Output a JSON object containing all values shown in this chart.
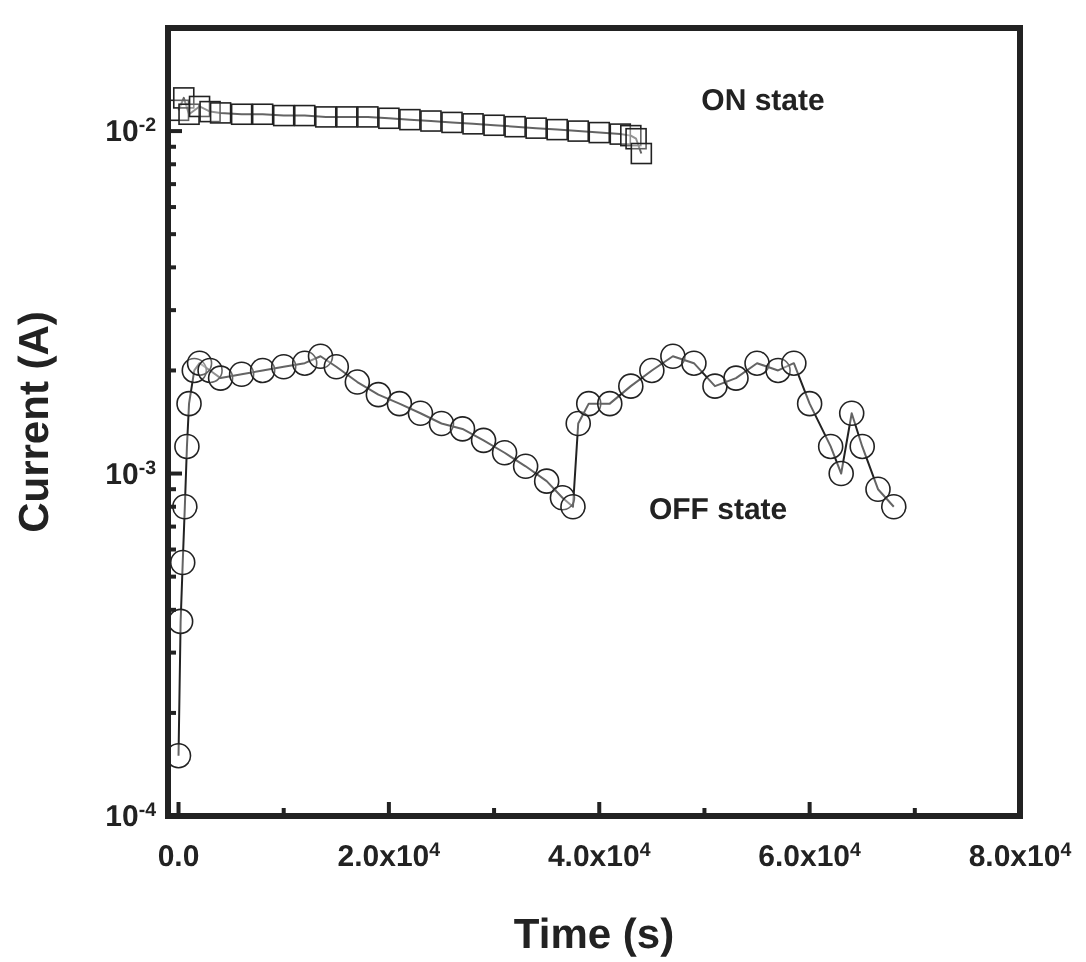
{
  "chart_data": {
    "type": "line",
    "xlabel": "Time (s)",
    "ylabel": "Current (A)",
    "log": "y",
    "grid": false,
    "xlim": [
      -1000,
      80000
    ],
    "ylim": [
      0.0001,
      0.02
    ],
    "xticks": [
      {
        "value": 0,
        "label": "0.0"
      },
      {
        "value": 10000,
        "label": null
      },
      {
        "value": 20000,
        "label": "2.0x10$^{4}$"
      },
      {
        "value": 30000,
        "label": null
      },
      {
        "value": 40000,
        "label": "4.0x10$^{4}$"
      },
      {
        "value": 50000,
        "label": null
      },
      {
        "value": 60000,
        "label": "6.0x10$^{4}$"
      },
      {
        "value": 70000,
        "label": null
      },
      {
        "value": 80000,
        "label": "8.0x10$^{4}$"
      }
    ],
    "yticks": [
      {
        "value": 0.0001,
        "label": "10$^{-4}$"
      },
      {
        "value": 0.001,
        "label": "10$^{-3}$"
      },
      {
        "value": 0.01,
        "label": "10$^{-2}$"
      }
    ],
    "series": [
      {
        "name": "ON state",
        "color": "#222222",
        "marker": "square",
        "x": [
          0,
          500,
          1000,
          2000,
          3000,
          4000,
          6000,
          8000,
          10000,
          12000,
          14000,
          16000,
          18000,
          20000,
          22000,
          24000,
          26000,
          28000,
          30000,
          32000,
          34000,
          36000,
          38000,
          40000,
          42000,
          43000,
          43500,
          44000
        ],
        "values": [
          0.0115,
          0.0125,
          0.0112,
          0.0118,
          0.0114,
          0.0113,
          0.0112,
          0.0112,
          0.0111,
          0.0111,
          0.011,
          0.011,
          0.011,
          0.0109,
          0.0108,
          0.0107,
          0.0106,
          0.0105,
          0.0104,
          0.0103,
          0.0102,
          0.0101,
          0.01,
          0.0099,
          0.0098,
          0.0097,
          0.0095,
          0.0086
        ]
      },
      {
        "name": "OFF state",
        "color": "#222222",
        "marker": "circle",
        "x": [
          0,
          200,
          400,
          600,
          800,
          1000,
          1500,
          2000,
          3000,
          4000,
          6000,
          8000,
          10000,
          12000,
          13500,
          15000,
          17000,
          19000,
          21000,
          23000,
          25000,
          27000,
          29000,
          31000,
          33000,
          35000,
          36500,
          37500,
          38000,
          39000,
          41000,
          43000,
          45000,
          47000,
          49000,
          51000,
          53000,
          55000,
          57000,
          58500,
          60000,
          62000,
          63000,
          64000,
          65000,
          66500,
          68000
        ],
        "values": [
          0.00015,
          0.00037,
          0.00055,
          0.0008,
          0.0012,
          0.0016,
          0.002,
          0.0021,
          0.002,
          0.0019,
          0.00195,
          0.002,
          0.00205,
          0.0021,
          0.0022,
          0.00205,
          0.00185,
          0.0017,
          0.0016,
          0.0015,
          0.0014,
          0.00135,
          0.00125,
          0.00115,
          0.00105,
          0.00095,
          0.00085,
          0.0008,
          0.0014,
          0.0016,
          0.0016,
          0.0018,
          0.002,
          0.0022,
          0.0021,
          0.0018,
          0.0019,
          0.0021,
          0.002,
          0.0021,
          0.0016,
          0.0012,
          0.001,
          0.0015,
          0.0012,
          0.0009,
          0.0008
        ]
      }
    ]
  }
}
